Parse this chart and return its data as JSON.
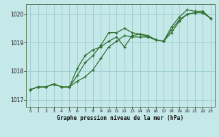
{
  "title": "Graphe pression niveau de la mer (hPa)",
  "bg_color": "#c5e8e8",
  "grid_color": "#9fcece",
  "line_color": "#2d6e2d",
  "xlim": [
    -0.5,
    23.5
  ],
  "ylim": [
    1016.75,
    1020.35
  ],
  "yticks": [
    1017,
    1018,
    1019,
    1020
  ],
  "xticks": [
    0,
    1,
    2,
    3,
    4,
    5,
    6,
    7,
    8,
    9,
    10,
    11,
    12,
    13,
    14,
    15,
    16,
    17,
    18,
    19,
    20,
    21,
    22,
    23
  ],
  "s1_x": [
    0,
    1,
    2,
    3,
    4,
    5,
    6,
    7,
    8,
    9,
    10,
    11,
    12,
    13,
    14,
    15,
    16,
    17,
    18,
    19,
    20,
    21,
    22,
    23
  ],
  "s1_y": [
    1017.35,
    1017.45,
    1017.45,
    1017.55,
    1017.45,
    1017.45,
    1017.65,
    1017.8,
    1018.05,
    1018.45,
    1018.85,
    1019.05,
    1019.25,
    1019.2,
    1019.2,
    1019.2,
    1019.1,
    1019.05,
    1019.35,
    1019.75,
    1020.0,
    1020.05,
    1020.05,
    1019.85
  ],
  "s2_x": [
    0,
    1,
    2,
    3,
    4,
    5,
    6,
    7,
    8,
    9,
    10,
    11,
    12,
    13,
    14,
    15,
    16,
    17,
    18,
    19,
    20,
    21,
    22,
    23
  ],
  "s2_y": [
    1017.35,
    1017.45,
    1017.45,
    1017.55,
    1017.45,
    1017.45,
    1017.85,
    1018.3,
    1018.55,
    1018.9,
    1019.35,
    1019.35,
    1019.5,
    1019.35,
    1019.3,
    1019.25,
    1019.1,
    1019.05,
    1019.45,
    1019.8,
    1020.0,
    1020.05,
    1020.05,
    1019.85
  ],
  "s3_x": [
    0,
    1,
    2,
    3,
    4,
    5,
    6,
    7,
    8,
    9,
    10,
    11,
    12,
    13,
    14,
    15,
    16,
    17,
    18,
    19,
    20,
    21,
    22,
    23
  ],
  "s3_y": [
    1017.35,
    1017.45,
    1017.45,
    1017.55,
    1017.45,
    1017.45,
    1018.1,
    1018.55,
    1018.75,
    1018.85,
    1019.05,
    1019.2,
    1018.85,
    1019.25,
    1019.3,
    1019.2,
    1019.1,
    1019.05,
    1019.55,
    1019.9,
    1020.15,
    1020.1,
    1020.1,
    1019.85
  ]
}
